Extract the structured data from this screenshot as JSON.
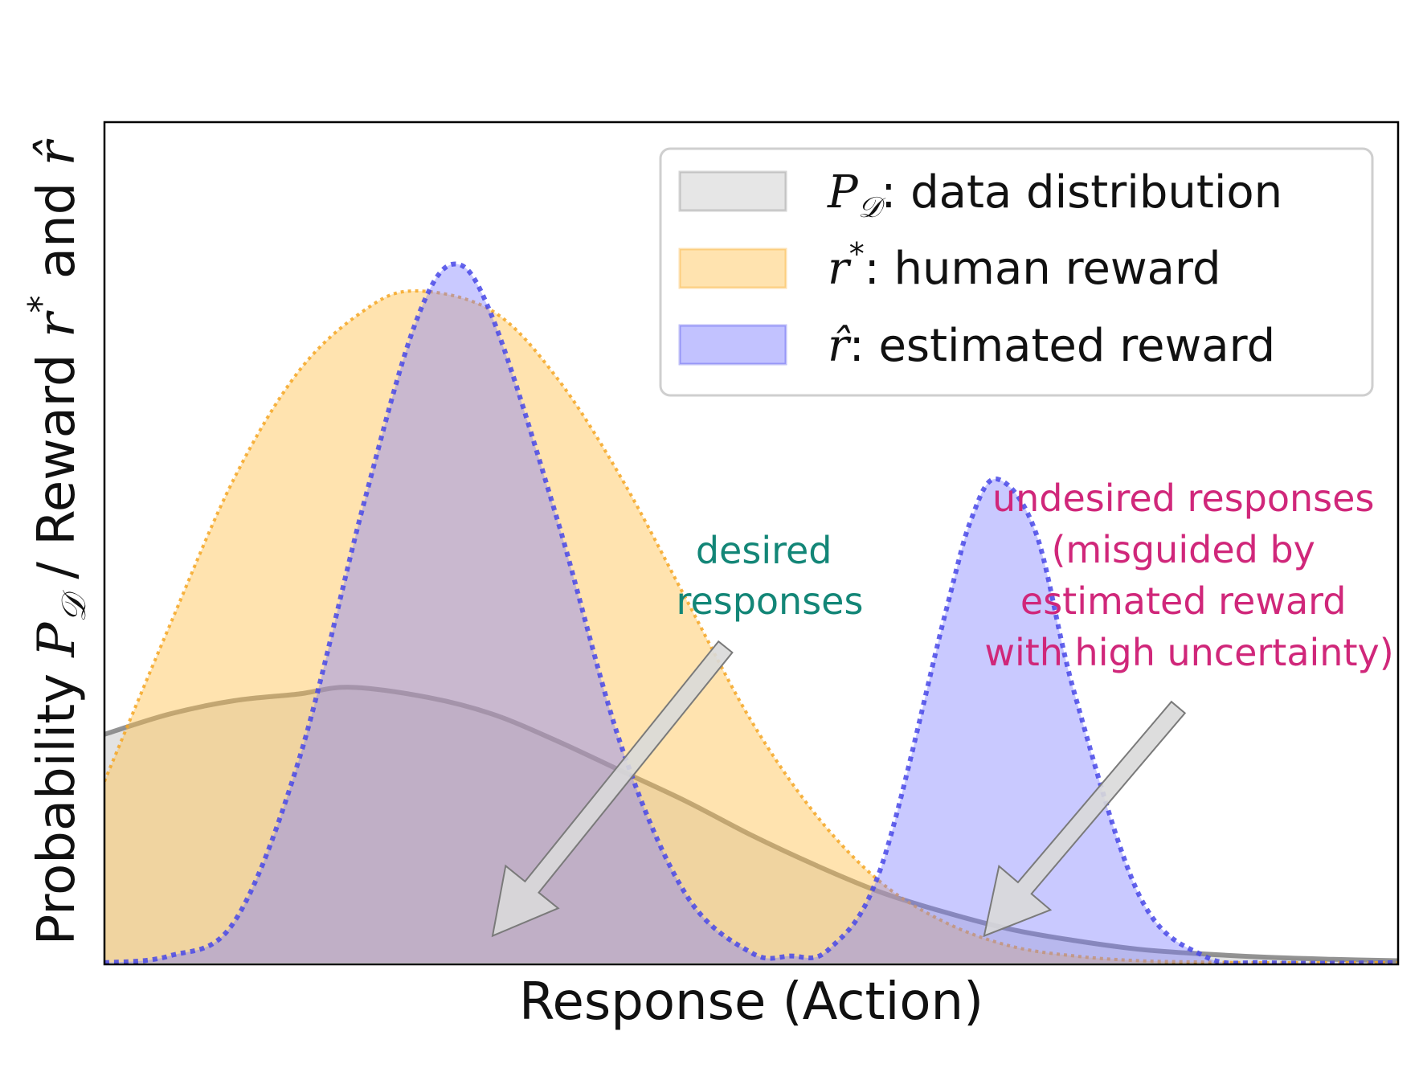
{
  "chart_data": {
    "type": "area",
    "xlabel": "Response (Action)",
    "ylabel": {
      "prefix": "Probability ",
      "p_symbol": "P",
      "p_subscript": "𝒟",
      "middle": " / Reward ",
      "r_symbol": "r",
      "r_superscript": "*",
      "and": " and ",
      "rhat_symbol": "r̂"
    },
    "ticks": "none",
    "xlim": [
      0,
      10
    ],
    "ylim": [
      0,
      1
    ],
    "grid": false,
    "legend_placement": "top-right",
    "series": [
      {
        "key": "data",
        "symbol": "P",
        "subscript": "𝒟",
        "label_text": ": data distribution",
        "color": "#b8b8b8",
        "line_color": "#808080",
        "line_style": "solid",
        "points": [
          [
            0,
            0.34
          ],
          [
            0.5,
            0.37
          ],
          [
            1,
            0.39
          ],
          [
            1.5,
            0.4
          ],
          [
            1.9,
            0.41
          ],
          [
            2.5,
            0.395
          ],
          [
            3,
            0.37
          ],
          [
            3.5,
            0.33
          ],
          [
            4,
            0.285
          ],
          [
            4.5,
            0.24
          ],
          [
            5,
            0.19
          ],
          [
            5.5,
            0.145
          ],
          [
            6,
            0.105
          ],
          [
            6.5,
            0.075
          ],
          [
            7,
            0.05
          ],
          [
            7.5,
            0.033
          ],
          [
            8,
            0.02
          ],
          [
            8.5,
            0.013
          ],
          [
            9,
            0.008
          ],
          [
            9.5,
            0.005
          ],
          [
            10,
            0.003
          ]
        ]
      },
      {
        "key": "human",
        "symbol": "r",
        "superscript": "*",
        "label_text": ": human reward",
        "color": "#ffc04d",
        "line_color": "#f5a623",
        "line_style": "dotted",
        "points": [
          [
            0,
            0.27
          ],
          [
            0.5,
            0.5
          ],
          [
            1,
            0.72
          ],
          [
            1.5,
            0.88
          ],
          [
            2,
            0.97
          ],
          [
            2.4,
            1.0
          ],
          [
            3,
            0.97
          ],
          [
            3.5,
            0.87
          ],
          [
            4,
            0.72
          ],
          [
            4.5,
            0.54
          ],
          [
            5,
            0.36
          ],
          [
            5.5,
            0.22
          ],
          [
            6,
            0.12
          ],
          [
            6.5,
            0.06
          ],
          [
            7,
            0.025
          ],
          [
            7.5,
            0.01
          ],
          [
            8,
            0.003
          ],
          [
            8.5,
            0.001
          ],
          [
            9,
            0.0
          ],
          [
            10,
            0.0
          ]
        ]
      },
      {
        "key": "estimated",
        "symbol": "r̂",
        "label_text": ": estimated reward",
        "color": "#7878ff",
        "line_color": "#4848e8",
        "line_style": "dotted",
        "points": [
          [
            0,
            0.0
          ],
          [
            0.5,
            0.01
          ],
          [
            1,
            0.06
          ],
          [
            1.5,
            0.3
          ],
          [
            2,
            0.68
          ],
          [
            2.4,
            0.95
          ],
          [
            2.7,
            1.04
          ],
          [
            3,
            0.96
          ],
          [
            3.5,
            0.66
          ],
          [
            4,
            0.32
          ],
          [
            4.5,
            0.1
          ],
          [
            5,
            0.015
          ],
          [
            5.3,
            0.01
          ],
          [
            5.6,
            0.02
          ],
          [
            6,
            0.14
          ],
          [
            6.5,
            0.52
          ],
          [
            6.7,
            0.66
          ],
          [
            6.9,
            0.72
          ],
          [
            7.2,
            0.64
          ],
          [
            7.5,
            0.4
          ],
          [
            8,
            0.1
          ],
          [
            8.5,
            0.01
          ],
          [
            9,
            0.0
          ],
          [
            10,
            0.0
          ]
        ]
      }
    ],
    "annotations": [
      {
        "key": "desired",
        "lines": [
          "desired",
          "responses"
        ],
        "color": "#138677"
      },
      {
        "key": "undesired",
        "lines": [
          "undesired responses",
          "(misguided by",
          "estimated reward",
          "with high uncertainty)"
        ],
        "color": "#d0277a"
      }
    ],
    "arrows": [
      {
        "target": "desired",
        "from": [
          4.8,
          0.47
        ],
        "to": [
          3.0,
          0.04
        ]
      },
      {
        "target": "undesired",
        "from": [
          8.3,
          0.38
        ],
        "to": [
          6.8,
          0.04
        ]
      }
    ]
  },
  "colors": {
    "arrow_fill": "#d9d9d9",
    "arrow_stroke": "#7a7a7a",
    "frame": "#000000"
  }
}
